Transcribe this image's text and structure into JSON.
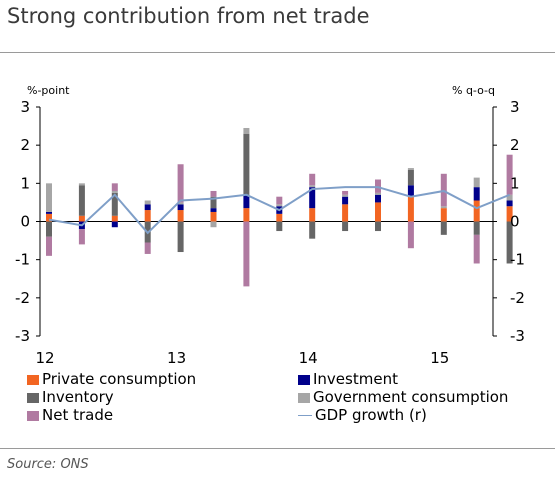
{
  "header": {
    "title": "Strong contribution from net trade"
  },
  "footer": {
    "source": "Source: ONS"
  },
  "chart_data": {
    "type": "bar",
    "stacked": true,
    "title": "Strong contribution from net trade",
    "left_axis": {
      "label": "%-point",
      "range": [
        -3,
        3
      ],
      "ticks": [
        -3,
        -2,
        -1,
        0,
        1,
        2,
        3
      ]
    },
    "right_axis": {
      "label": "% q-o-q",
      "range": [
        -3,
        3
      ],
      "ticks": [
        -3,
        -2,
        -1,
        0,
        1,
        2,
        3
      ]
    },
    "x_tick_labels": [
      "12",
      "13",
      "14",
      "15"
    ],
    "categories": [
      "2012Q1",
      "2012Q2",
      "2012Q3",
      "2012Q4",
      "2013Q1",
      "2013Q2",
      "2013Q3",
      "2013Q4",
      "2014Q1",
      "2014Q2",
      "2014Q3",
      "2014Q4",
      "2015Q1",
      "2015Q2",
      "2015Q3"
    ],
    "series": [
      {
        "name": "Private consumption",
        "color": "#f26522",
        "values": [
          0.2,
          0.15,
          0.15,
          0.3,
          0.3,
          0.25,
          0.35,
          0.2,
          0.35,
          0.45,
          0.5,
          0.65,
          0.35,
          0.55,
          0.4
        ]
      },
      {
        "name": "Investment",
        "color": "#00008b",
        "values": [
          0.05,
          -0.2,
          -0.15,
          0.15,
          0.15,
          0.1,
          0.35,
          0.2,
          0.55,
          0.2,
          0.2,
          0.3,
          0.0,
          0.35,
          0.15
        ]
      },
      {
        "name": "Inventory",
        "color": "#666666",
        "values": [
          -0.4,
          0.8,
          0.6,
          -0.55,
          -0.8,
          0.3,
          1.6,
          -0.25,
          -0.45,
          -0.25,
          -0.25,
          0.4,
          -0.35,
          -0.35,
          -1.1
        ]
      },
      {
        "name": "Government consumption",
        "color": "#a6a6a6",
        "values": [
          0.75,
          0.05,
          0.05,
          0.1,
          0.05,
          -0.15,
          0.15,
          0.05,
          0.05,
          0.05,
          0.05,
          0.05,
          0.05,
          0.25,
          0.15
        ]
      },
      {
        "name": "Net trade",
        "color": "#b07aa1",
        "values": [
          -0.5,
          -0.4,
          0.2,
          -0.3,
          1.0,
          0.15,
          -1.7,
          0.2,
          0.3,
          0.1,
          0.35,
          -0.7,
          0.85,
          -0.75,
          1.05
        ]
      }
    ],
    "line": {
      "name": "GDP growth (r)",
      "color": "#7f9fc8",
      "values": [
        0.05,
        -0.1,
        0.7,
        -0.3,
        0.55,
        0.6,
        0.7,
        0.3,
        0.85,
        0.9,
        0.9,
        0.65,
        0.8,
        0.35,
        0.7
      ]
    },
    "legend": [
      {
        "label": "Private consumption",
        "kind": "bar",
        "color": "#f26522"
      },
      {
        "label": "Investment",
        "kind": "bar",
        "color": "#00008b"
      },
      {
        "label": "Inventory",
        "kind": "bar",
        "color": "#666666"
      },
      {
        "label": "Government consumption",
        "kind": "bar",
        "color": "#a6a6a6"
      },
      {
        "label": "Net trade",
        "kind": "bar",
        "color": "#b07aa1"
      },
      {
        "label": "GDP growth (r)",
        "kind": "line",
        "color": "#7f9fc8"
      }
    ],
    "legend_position": "bottom",
    "grid": false
  }
}
